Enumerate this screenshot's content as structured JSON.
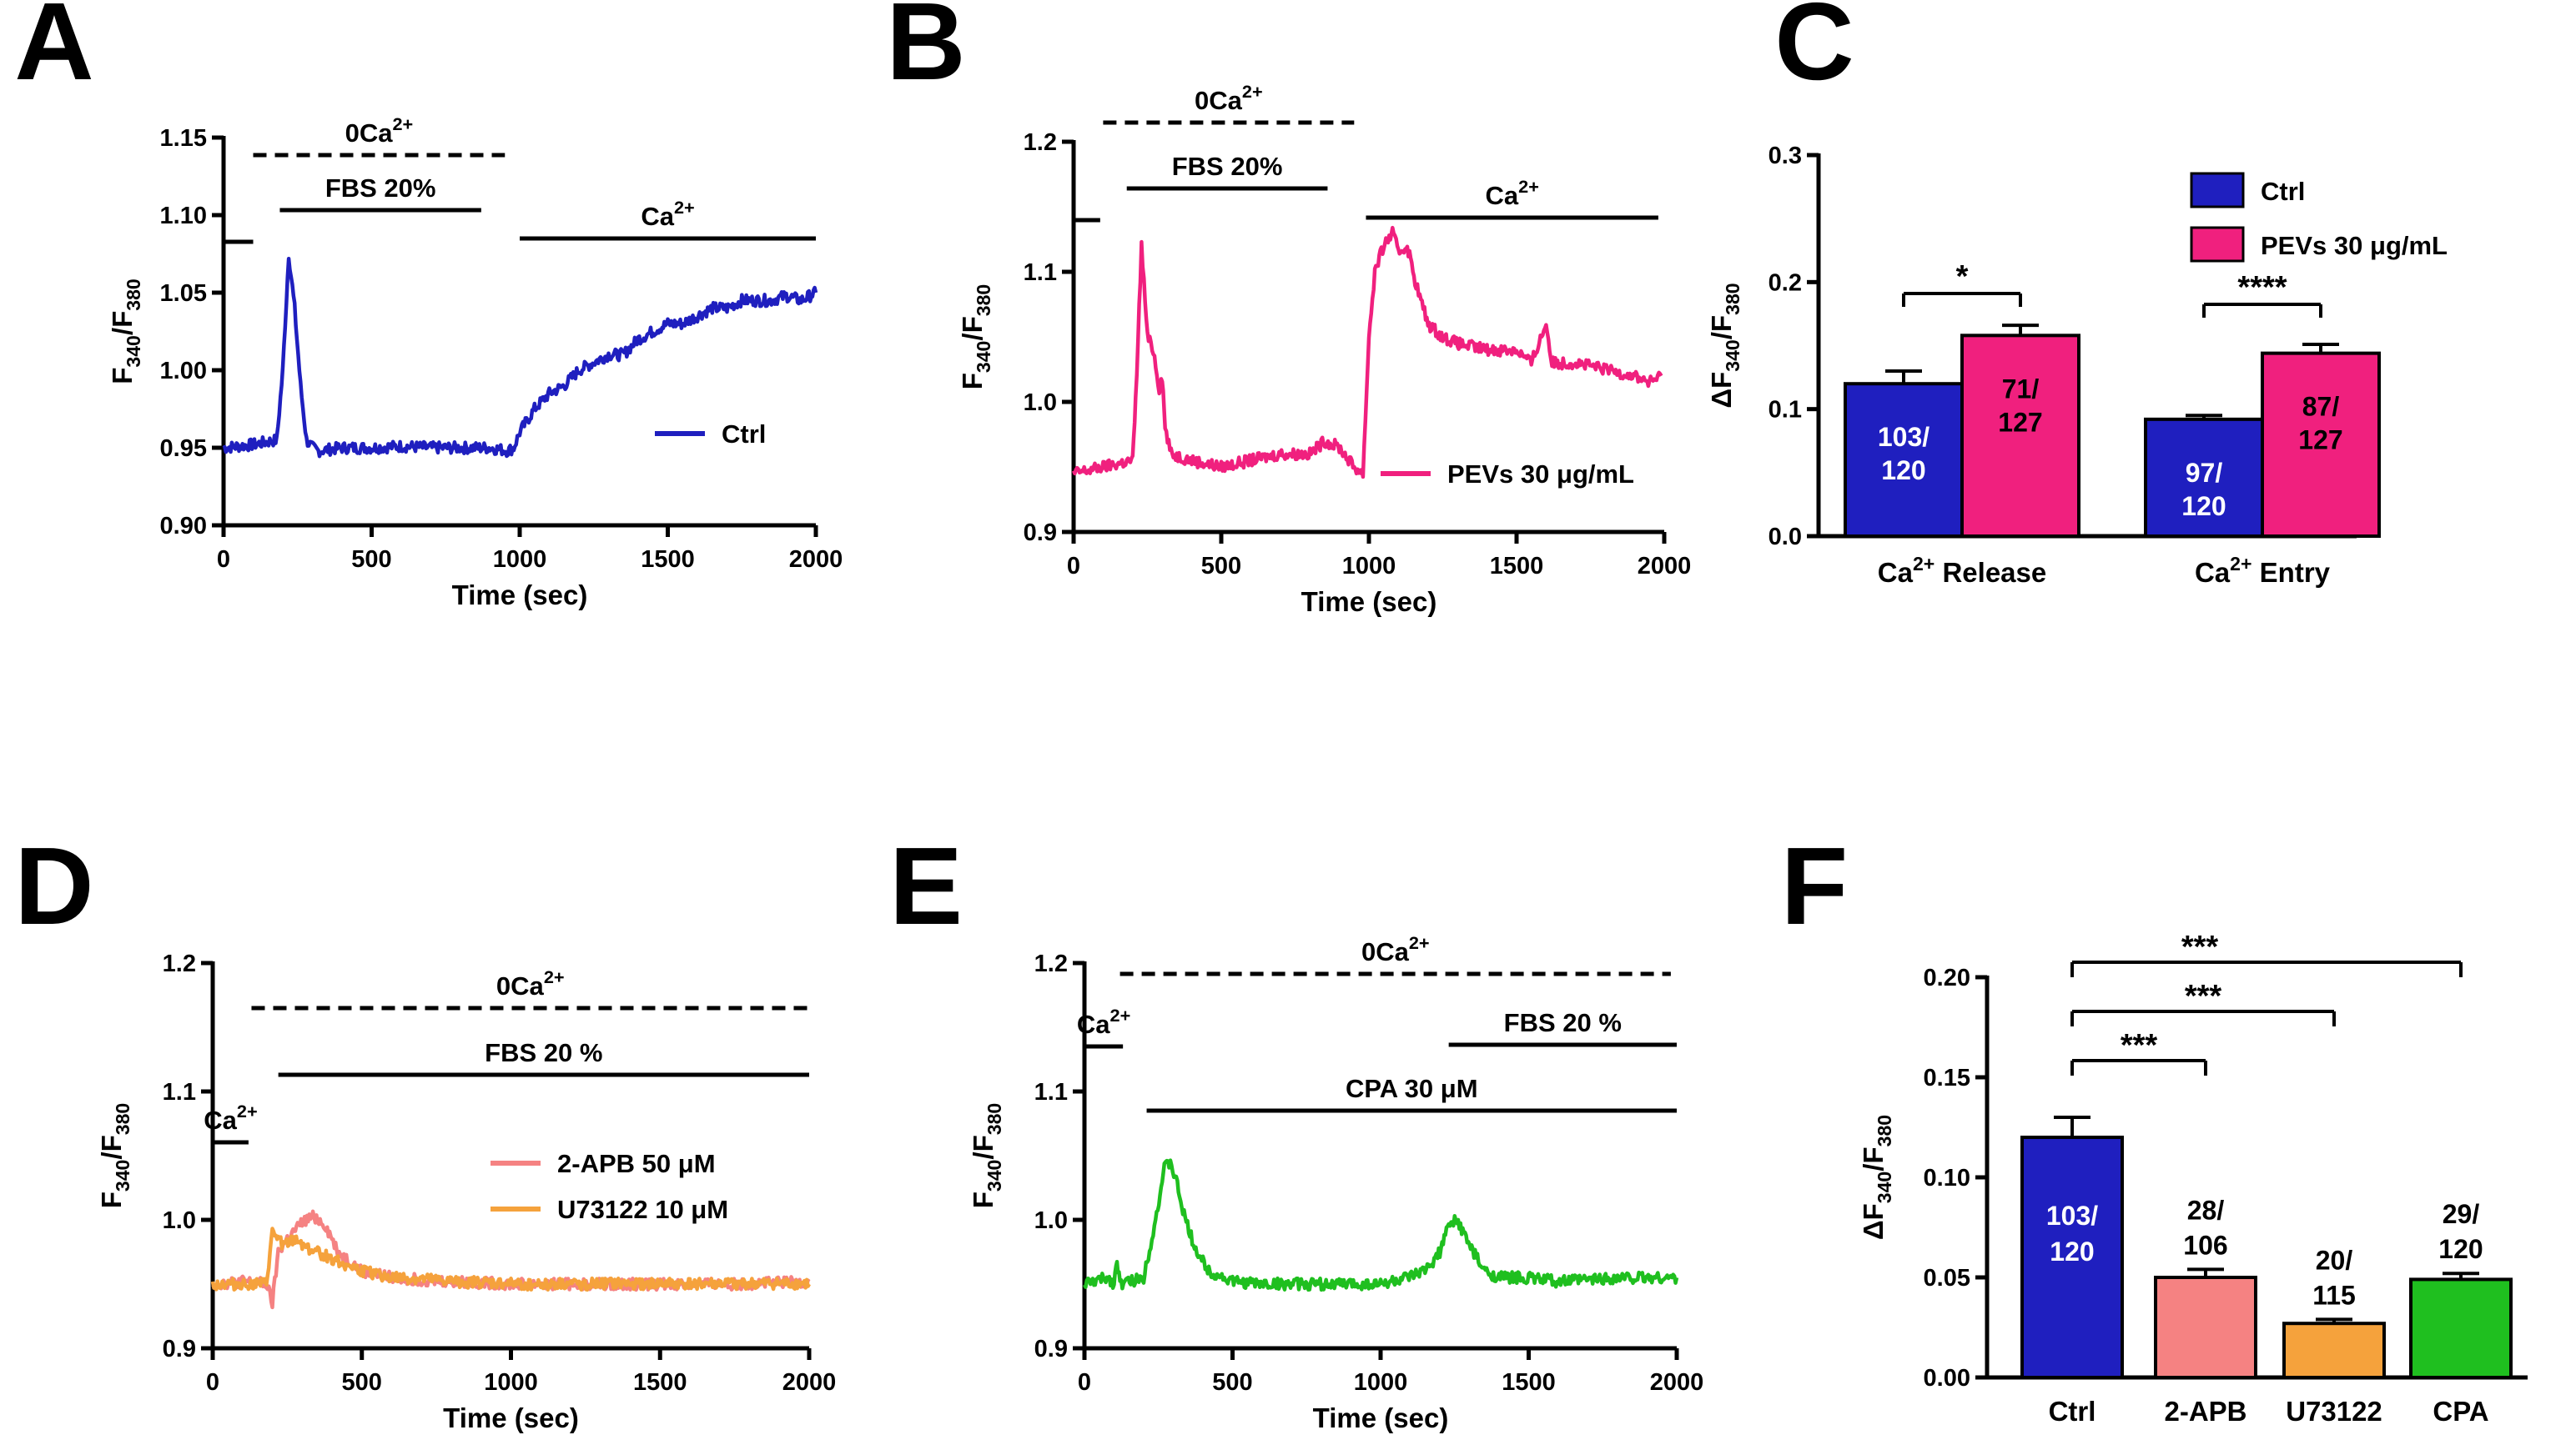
{
  "figure": {
    "panels": [
      "A",
      "B",
      "C",
      "D",
      "E",
      "F"
    ]
  },
  "colors": {
    "ctrl": "#1f1fbf",
    "pevs": "#f0207e",
    "apb": "#f58282",
    "u73122": "#f5a23c",
    "cpa": "#1fbf1f"
  },
  "chart_data": [
    {
      "panel": "A",
      "type": "line",
      "xlabel": "Time (sec)",
      "ylabel": "F340/F380",
      "xlim": [
        0,
        2000
      ],
      "ylim": [
        0.9,
        1.15
      ],
      "xticks": [
        "0",
        "500",
        "1000",
        "1500",
        "2000"
      ],
      "yticks": [
        "0.90",
        "0.95",
        "1.00",
        "1.05",
        "1.10",
        "1.15"
      ],
      "legend": [
        "Ctrl"
      ],
      "annotations": [
        {
          "text": "0Ca2+",
          "span": [
            100,
            950
          ],
          "style": "dashed"
        },
        {
          "text": "FBS 20%",
          "span": [
            190,
            870
          ],
          "style": "solid"
        },
        {
          "text": "Ca2+",
          "span": [
            1000,
            2000
          ],
          "style": "solid"
        },
        {
          "text": "",
          "span": [
            0,
            100
          ],
          "style": "solid"
        }
      ],
      "series": [
        {
          "name": "Ctrl",
          "color": "ctrl",
          "x": [
            0,
            100,
            180,
            200,
            220,
            240,
            260,
            280,
            300,
            320,
            400,
            500,
            600,
            700,
            800,
            900,
            960,
            980,
            1000,
            1050,
            1100,
            1150,
            1200,
            1250,
            1300,
            1350,
            1400,
            1450,
            1500,
            1550,
            1600,
            1650,
            1700,
            1750,
            1800,
            1850,
            1900,
            1950,
            2000
          ],
          "y": [
            0.95,
            0.952,
            0.955,
            1.0,
            1.075,
            1.04,
            0.99,
            0.955,
            0.95,
            0.948,
            0.95,
            0.95,
            0.951,
            0.95,
            0.95,
            0.95,
            0.948,
            0.95,
            0.96,
            0.975,
            0.985,
            0.99,
            1.0,
            1.005,
            1.01,
            1.01,
            1.02,
            1.025,
            1.03,
            1.03,
            1.035,
            1.04,
            1.04,
            1.045,
            1.045,
            1.045,
            1.048,
            1.045,
            1.05
          ]
        }
      ]
    },
    {
      "panel": "B",
      "type": "line",
      "xlabel": "Time (sec)",
      "ylabel": "F340/F380",
      "xlim": [
        0,
        2000
      ],
      "ylim": [
        0.9,
        1.2
      ],
      "xticks": [
        "0",
        "500",
        "1000",
        "1500",
        "2000"
      ],
      "yticks": [
        "0.9",
        "1.0",
        "1.1",
        "1.2"
      ],
      "legend": [
        "PEVs 30 μg/mL"
      ],
      "annotations": [
        {
          "text": "0Ca2+",
          "span": [
            100,
            950
          ],
          "style": "dashed"
        },
        {
          "text": "FBS 20%",
          "span": [
            180,
            860
          ],
          "style": "solid"
        },
        {
          "text": "Ca2+",
          "span": [
            990,
            1980
          ],
          "style": "solid"
        },
        {
          "text": "",
          "span": [
            0,
            90
          ],
          "style": "solid"
        }
      ],
      "series": [
        {
          "name": "PEVs 30 μg/mL",
          "color": "pevs",
          "x": [
            0,
            100,
            200,
            210,
            230,
            250,
            270,
            290,
            300,
            310,
            330,
            400,
            500,
            600,
            700,
            800,
            850,
            900,
            950,
            980,
            1000,
            1020,
            1050,
            1080,
            1100,
            1130,
            1160,
            1200,
            1250,
            1300,
            1400,
            1500,
            1550,
            1600,
            1620,
            1650,
            1700,
            1800,
            1900,
            1950,
            1990
          ],
          "y": [
            0.945,
            0.95,
            0.955,
            1.0,
            1.12,
            1.05,
            1.04,
            1.01,
            1.02,
            0.98,
            0.96,
            0.955,
            0.95,
            0.955,
            0.96,
            0.96,
            0.97,
            0.965,
            0.95,
            0.945,
            1.05,
            1.1,
            1.12,
            1.13,
            1.115,
            1.12,
            1.09,
            1.06,
            1.05,
            1.045,
            1.04,
            1.04,
            1.03,
            1.06,
            1.03,
            1.03,
            1.03,
            1.025,
            1.02,
            1.015,
            1.02
          ]
        }
      ]
    },
    {
      "panel": "C",
      "type": "bar",
      "ylabel": "ΔF340/F380",
      "ylim": [
        0,
        0.3
      ],
      "yticks": [
        "0.0",
        "0.1",
        "0.2",
        "0.3"
      ],
      "categories": [
        "Ca2+ Release",
        "Ca2+ Entry"
      ],
      "legend": [
        "Ctrl",
        "PEVs 30 μg/mL"
      ],
      "series": [
        {
          "name": "Ctrl",
          "color": "ctrl",
          "values": [
            0.12,
            0.092
          ],
          "errors": [
            0.01,
            0.003
          ],
          "labels": [
            "103/ 120",
            "97/ 120"
          ]
        },
        {
          "name": "PEVs 30 μg/mL",
          "color": "pevs",
          "values": [
            0.158,
            0.144
          ],
          "errors": [
            0.008,
            0.007
          ],
          "labels": [
            "71/ 127",
            "87/ 127"
          ]
        }
      ],
      "significance": [
        {
          "text": "*",
          "category": 0
        },
        {
          "text": "****",
          "category": 1
        }
      ]
    },
    {
      "panel": "D",
      "type": "line",
      "xlabel": "Time (sec)",
      "ylabel": "F340/F380",
      "xlim": [
        0,
        2000
      ],
      "ylim": [
        0.9,
        1.2
      ],
      "xticks": [
        "0",
        "500",
        "1000",
        "1500",
        "2000"
      ],
      "yticks": [
        "0.9",
        "1.0",
        "1.1",
        "1.2"
      ],
      "legend": [
        "2-APB 50 μM",
        "U73122 10 μM"
      ],
      "annotations": [
        {
          "text": "0Ca2+",
          "span": [
            130,
            2000
          ],
          "style": "dashed"
        },
        {
          "text": "FBS 20 %",
          "span": [
            220,
            2000
          ],
          "style": "solid"
        },
        {
          "text": "Ca2+",
          "span": [
            0,
            120
          ],
          "style": "solid"
        }
      ],
      "series": [
        {
          "name": "2-APB 50 μM",
          "color": "apb",
          "x": [
            0,
            100,
            180,
            200,
            220,
            250,
            300,
            340,
            380,
            420,
            500,
            600,
            800,
            1000,
            1200,
            1500,
            1800,
            2000
          ],
          "y": [
            0.95,
            0.952,
            0.95,
            0.935,
            0.975,
            0.985,
            0.998,
            1.003,
            0.995,
            0.975,
            0.96,
            0.955,
            0.952,
            0.95,
            0.95,
            0.95,
            0.95,
            0.952
          ]
        },
        {
          "name": "U73122 10 μM",
          "color": "u73122",
          "x": [
            0,
            100,
            180,
            200,
            220,
            240,
            280,
            320,
            400,
            500,
            600,
            800,
            1000,
            1200,
            1500,
            1800,
            2000
          ],
          "y": [
            0.95,
            0.95,
            0.95,
            0.99,
            0.985,
            0.98,
            0.985,
            0.978,
            0.97,
            0.96,
            0.955,
            0.952,
            0.95,
            0.95,
            0.95,
            0.95,
            0.95
          ]
        }
      ]
    },
    {
      "panel": "E",
      "type": "line",
      "xlabel": "Time (sec)",
      "ylabel": "F340/F380",
      "xlim": [
        0,
        2000
      ],
      "ylim": [
        0.9,
        1.2
      ],
      "xticks": [
        "0",
        "500",
        "1000",
        "1500",
        "2000"
      ],
      "yticks": [
        "0.9",
        "1.0",
        "1.1",
        "1.2"
      ],
      "annotations": [
        {
          "text": "0Ca2+",
          "span": [
            120,
            1980
          ],
          "style": "dashed"
        },
        {
          "text": "Ca2+",
          "span": [
            0,
            130
          ],
          "style": "solid"
        },
        {
          "text": "FBS 20 %",
          "span": [
            1230,
            2000
          ],
          "style": "solid"
        },
        {
          "text": "CPA 30 μM",
          "span": [
            210,
            2000
          ],
          "style": "solid"
        }
      ],
      "series": [
        {
          "name": "",
          "color": "cpa",
          "x": [
            0,
            80,
            100,
            110,
            120,
            200,
            240,
            270,
            290,
            310,
            340,
            380,
            420,
            500,
            600,
            800,
            1000,
            1100,
            1150,
            1200,
            1230,
            1250,
            1270,
            1300,
            1350,
            1400,
            1500,
            1600,
            1800,
            2000
          ],
          "y": [
            0.95,
            0.955,
            0.95,
            0.97,
            0.95,
            0.955,
            1.0,
            1.04,
            1.045,
            1.03,
            1.0,
            0.975,
            0.96,
            0.952,
            0.95,
            0.95,
            0.95,
            0.955,
            0.96,
            0.975,
            0.995,
            1.0,
            0.995,
            0.98,
            0.96,
            0.955,
            0.955,
            0.952,
            0.955,
            0.955
          ]
        }
      ]
    },
    {
      "panel": "F",
      "type": "bar",
      "ylabel": "ΔF340/F380",
      "ylim": [
        0,
        0.2
      ],
      "yticks": [
        "0.00",
        "0.05",
        "0.10",
        "0.15",
        "0.20"
      ],
      "categories": [
        "Ctrl",
        "2-APB",
        "U73122",
        "CPA"
      ],
      "values": [
        0.12,
        0.05,
        0.027,
        0.049
      ],
      "errors": [
        0.01,
        0.004,
        0.002,
        0.003
      ],
      "colors": [
        "ctrl",
        "apb",
        "u73122",
        "cpa"
      ],
      "labels": [
        "103/ 120",
        "28/ 106",
        "20/ 115",
        "29/ 120"
      ],
      "significance": [
        {
          "text": "***",
          "from": 0,
          "to": 1
        },
        {
          "text": "***",
          "from": 0,
          "to": 2
        },
        {
          "text": "***",
          "from": 0,
          "to": 3
        }
      ]
    }
  ]
}
